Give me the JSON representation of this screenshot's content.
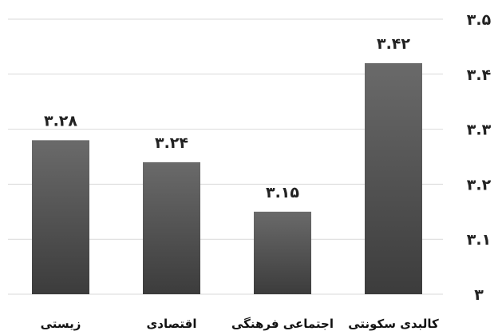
{
  "chart_data": {
    "type": "bar",
    "title": "",
    "xlabel": "",
    "ylabel": "",
    "categories": [
      "زیستی",
      "اقتصادی",
      "اجتماعی فرهنگی",
      "کالبدی سکونتی"
    ],
    "values": [
      3.28,
      3.24,
      3.15,
      3.42
    ],
    "value_labels": [
      "۳.۲۸",
      "۳.۲۴",
      "۳.۱۵",
      "۳.۴۲"
    ],
    "ylim": [
      3,
      3.5
    ],
    "yticks": [
      3,
      3.1,
      3.2,
      3.3,
      3.4,
      3.5
    ],
    "ytick_labels": [
      "۳",
      "۳.۱",
      "۳.۲",
      "۳.۳",
      "۳.۴",
      "۳.۵"
    ],
    "y_axis_position": "right",
    "grid": true,
    "legend": "none",
    "colors": {
      "bar_top": "#6a6a6a",
      "bar_bottom": "#3c3c3c",
      "grid": "#d9d9d9"
    }
  }
}
